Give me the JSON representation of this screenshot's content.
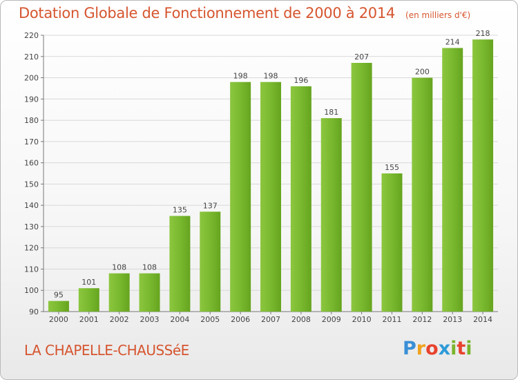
{
  "title": "Dotation Globale de Fonctionnement de 2000 à 2014",
  "unit_note": "(en milliers d'€)",
  "commune": "LA CHAPELLE-CHAUSSéE",
  "brand": {
    "letters": [
      "P",
      "r",
      "o",
      "x",
      "i",
      "t",
      "i"
    ],
    "colors": [
      "#3a8fd6",
      "#f0a21e",
      "#e8432e",
      "#2e9ad8",
      "#7ab42c",
      "#e8432e",
      "#7ab42c"
    ]
  },
  "colors": {
    "bar": "#79b92f",
    "bar_dark": "#5c9a1c",
    "title": "#d6552f",
    "grid": "#d8d8d8"
  },
  "chart_data": {
    "type": "bar",
    "title": "Dotation Globale de Fonctionnement de 2000 à 2014",
    "subtitle": "(en milliers d'€)",
    "categories": [
      "2000",
      "2001",
      "2002",
      "2003",
      "2004",
      "2005",
      "2006",
      "2007",
      "2008",
      "2009",
      "2010",
      "2011",
      "2012",
      "2013",
      "2014"
    ],
    "values": [
      95,
      101,
      108,
      108,
      135,
      137,
      198,
      198,
      196,
      181,
      207,
      155,
      200,
      214,
      218
    ],
    "xlabel": "",
    "ylabel": "",
    "ylim": [
      90,
      220
    ],
    "yticks": [
      90,
      100,
      110,
      120,
      130,
      140,
      150,
      160,
      170,
      180,
      190,
      200,
      210,
      220
    ],
    "grid": true,
    "data_labels": true
  }
}
